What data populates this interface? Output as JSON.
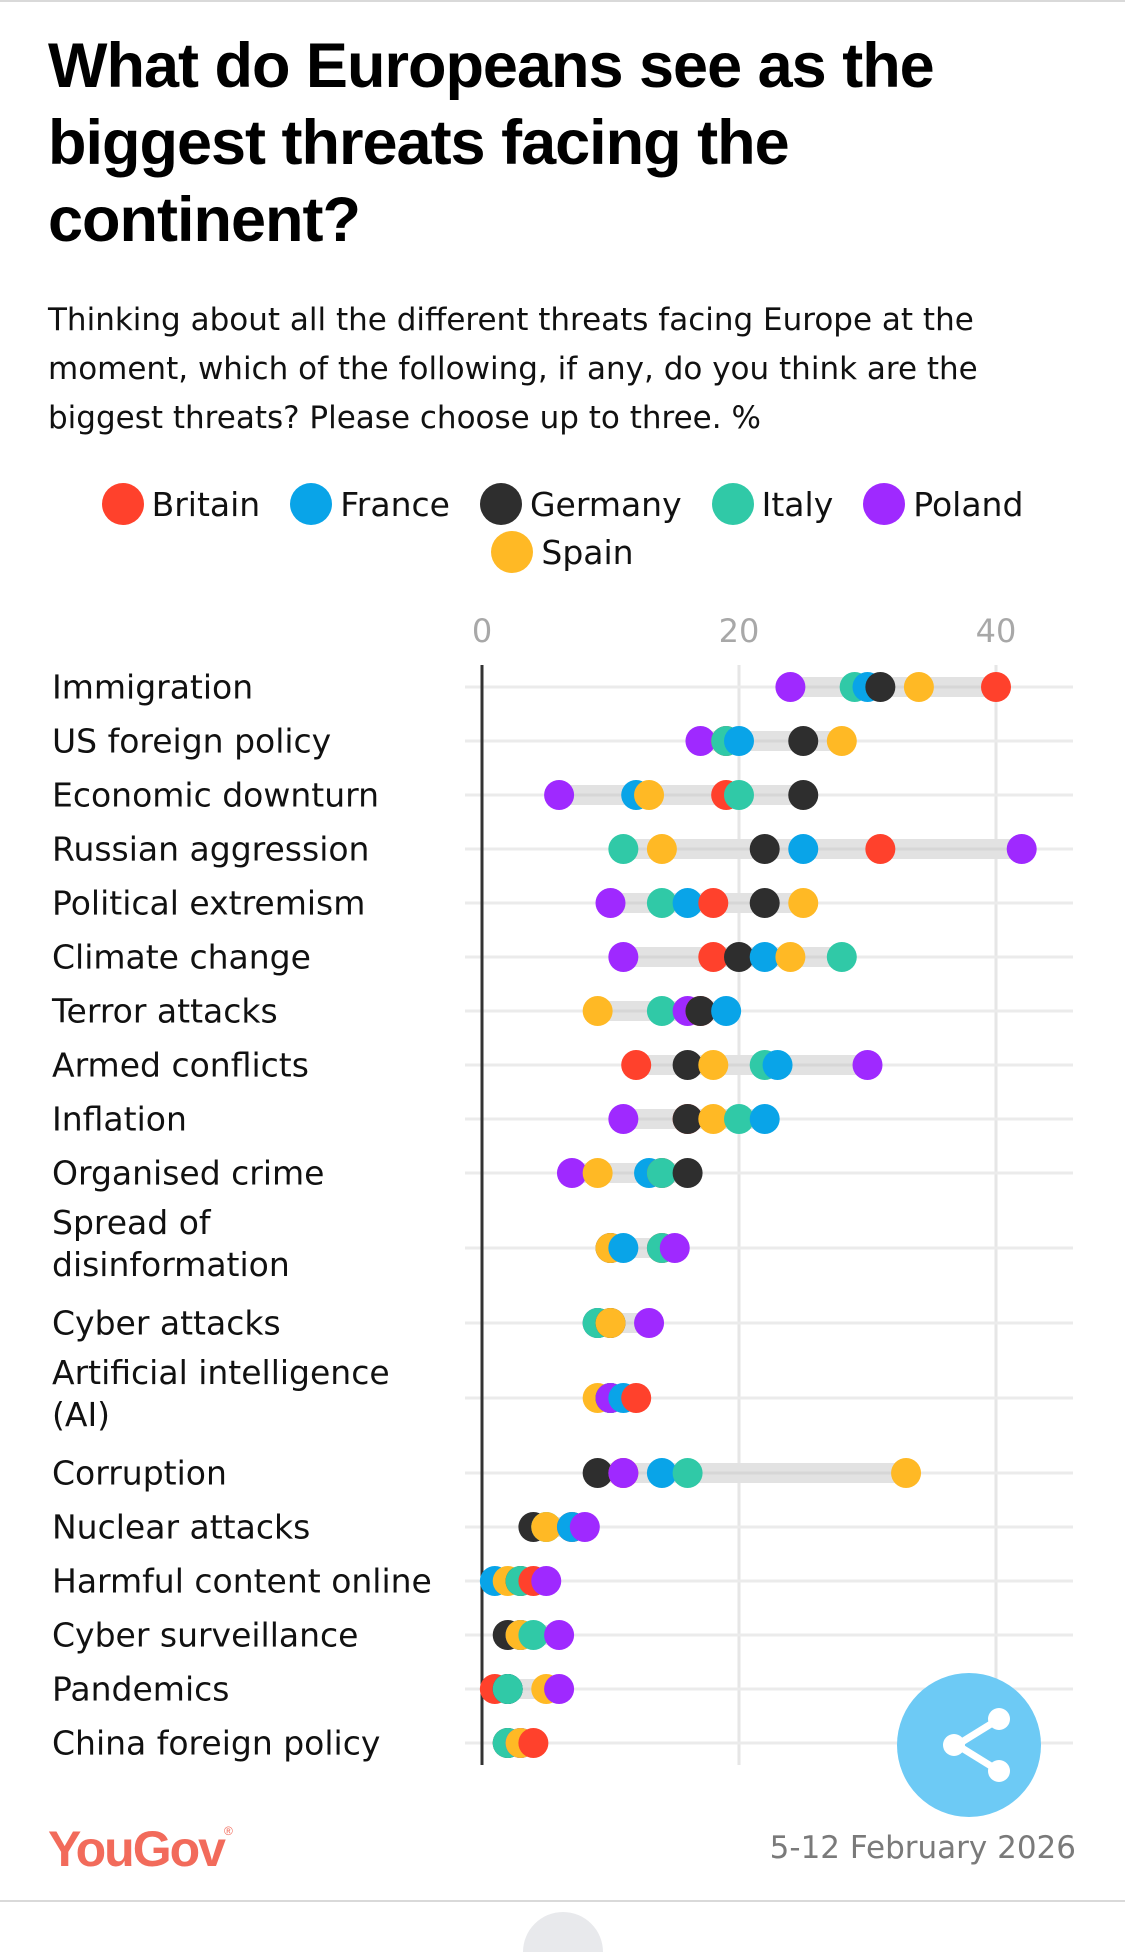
{
  "header": {
    "title": "What do Europeans see as the biggest threats facing the continent?",
    "subtitle": "Thinking about all the different threats facing Europe at the moment, which of the following, if any, do you think are the biggest threats? Please choose up to three. %"
  },
  "legend": [
    {
      "name": "Britain",
      "color": "#FF412C"
    },
    {
      "name": "France",
      "color": "#09A4E8"
    },
    {
      "name": "Germany",
      "color": "#2E2E2E"
    },
    {
      "name": "Italy",
      "color": "#30C9A7"
    },
    {
      "name": "Poland",
      "color": "#9F29FF"
    },
    {
      "name": "Spain",
      "color": "#FFB925"
    }
  ],
  "chart_data": {
    "type": "scatter",
    "subtype": "dot-plot",
    "title": "What do Europeans see as the biggest threats facing the continent?",
    "xlabel": "%",
    "ylabel": "",
    "xlim": [
      0,
      45
    ],
    "xticks": [
      0,
      20,
      40
    ],
    "grid": true,
    "legend_position": "top-center",
    "categories": [
      "Immigration",
      "US foreign policy",
      "Economic downturn",
      "Russian aggression",
      "Political extremism",
      "Climate change",
      "Terror attacks",
      "Armed conflicts",
      "Inflation",
      "Organised crime",
      "Spread of disinformation",
      "Cyber attacks",
      "Artificial intelligence (AI)",
      "Corruption",
      "Nuclear attacks",
      "Harmful content online",
      "Cyber surveillance",
      "Pandemics",
      "China foreign policy"
    ],
    "series": [
      {
        "name": "Britain",
        "color": "#FF412C",
        "values": [
          40,
          19,
          19,
          31,
          18,
          18,
          17,
          12,
          16,
          14,
          14,
          9,
          12,
          11,
          7,
          4,
          3,
          1,
          4
        ]
      },
      {
        "name": "France",
        "color": "#09A4E8",
        "values": [
          30,
          20,
          12,
          25,
          16,
          22,
          19,
          23,
          22,
          13,
          11,
          9,
          11,
          14,
          7,
          1,
          3,
          2,
          3
        ]
      },
      {
        "name": "Germany",
        "color": "#2E2E2E",
        "values": [
          31,
          25,
          25,
          22,
          22,
          20,
          17,
          16,
          16,
          16,
          10,
          10,
          10,
          9,
          4,
          3,
          2,
          2,
          2
        ]
      },
      {
        "name": "Italy",
        "color": "#30C9A7",
        "values": [
          29,
          19,
          20,
          11,
          14,
          28,
          14,
          22,
          20,
          14,
          14,
          9,
          10,
          16,
          5,
          3,
          4,
          2,
          2
        ]
      },
      {
        "name": "Poland",
        "color": "#9F29FF",
        "values": [
          24,
          17,
          6,
          42,
          10,
          11,
          16,
          30,
          11,
          7,
          15,
          13,
          10,
          11,
          8,
          5,
          6,
          6,
          3
        ]
      },
      {
        "name": "Spain",
        "color": "#FFB925",
        "values": [
          34,
          28,
          13,
          14,
          25,
          24,
          9,
          18,
          18,
          9,
          10,
          10,
          9,
          33,
          5,
          2,
          3,
          5,
          3
        ]
      }
    ]
  },
  "footer": {
    "brand": "YouGov",
    "brand_mark": "®",
    "date": "5-12 February 2026"
  },
  "share": {
    "icon": "share-icon",
    "label": "Share"
  }
}
